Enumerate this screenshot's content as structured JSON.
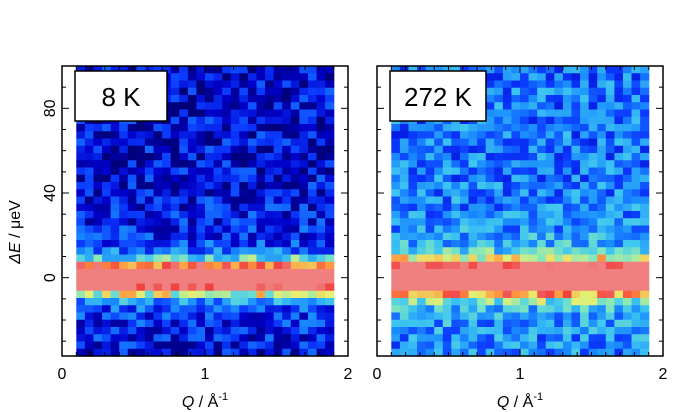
{
  "chart_data": {
    "type": "heatmap",
    "xlabel": {
      "symbol": "Q",
      "unit": " / Å",
      "exp": "-1"
    },
    "ylabel": {
      "symbol": "ΔE",
      "unit": " / μeV"
    },
    "xlim": [
      0,
      2
    ],
    "ylim": [
      -37,
      100
    ],
    "x_ticks": [
      0,
      1,
      2
    ],
    "y_ticks": [
      0,
      40,
      80
    ],
    "colormap": [
      "#00007a",
      "#0000c8",
      "#0b3cff",
      "#1a8cff",
      "#3ec6f0",
      "#7fe6c0",
      "#e8f070",
      "#ff9a40",
      "#f04040",
      "#f08080"
    ],
    "panels": [
      {
        "label": "8 K",
        "data_range_q": [
          0.1,
          1.9
        ],
        "peak_center_mev": 0,
        "peak_width_mev": 5.5,
        "background_level": 0.07,
        "background_noise": 0.16
      },
      {
        "label": "272 K",
        "data_range_q": [
          0.1,
          1.9
        ],
        "peak_center_mev": 0,
        "peak_width_mev": 5.5,
        "background_level": 0.26,
        "background_noise": 0.14
      }
    ]
  }
}
